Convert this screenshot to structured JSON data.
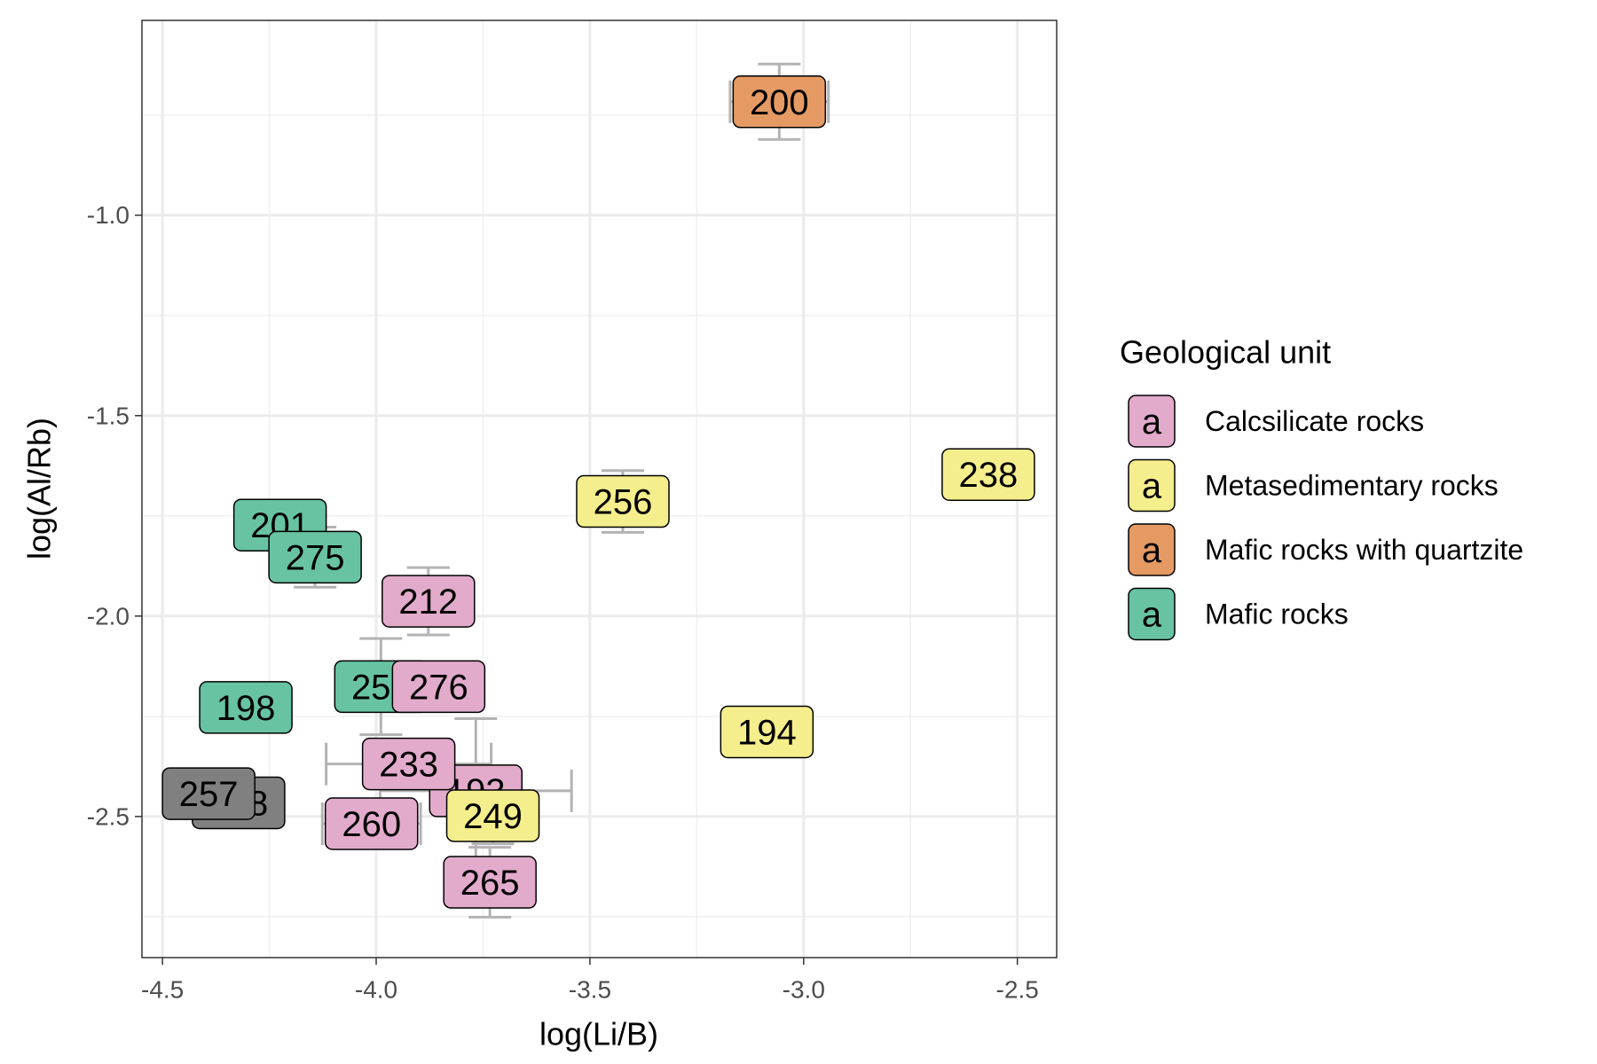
{
  "chart_data": {
    "type": "scatter",
    "x_label": "log(Li/B)",
    "y_label": "log(Al/Rb)",
    "legend_title": "Geological unit",
    "legend_key_text": "a",
    "legend_position": "right",
    "grid": true,
    "xlim": [
      -4.548,
      -2.408
    ],
    "ylim": [
      -2.852,
      -0.514
    ],
    "xticks": [
      {
        "value": -4.5,
        "label": "-4.5"
      },
      {
        "value": -4.0,
        "label": "-4.0"
      },
      {
        "value": -3.5,
        "label": "-3.5"
      },
      {
        "value": -3.0,
        "label": "-3.0"
      },
      {
        "value": -2.5,
        "label": "-2.5"
      }
    ],
    "yticks": [
      {
        "value": -1.0,
        "label": "-1.0"
      },
      {
        "value": -1.5,
        "label": "-1.5"
      },
      {
        "value": -2.0,
        "label": "-2.0"
      },
      {
        "value": -2.5,
        "label": "-2.5"
      }
    ],
    "errorbar_color": "#b3b3b3",
    "series": [
      {
        "name": "Calcsilicate rocks",
        "color": "#e2abcc",
        "points": [
          {
            "label": "212",
            "x": -3.878,
            "y": -1.963,
            "yerr": 0.084
          },
          {
            "label": "276",
            "x": -3.854,
            "y": -2.176,
            "yerr": 0.05
          },
          {
            "label": "193",
            "x": -3.767,
            "y": -2.436,
            "xerr": 0.224,
            "yerr": 0.18
          },
          {
            "label": "233",
            "x": -3.924,
            "y": -2.369,
            "xerr": 0.193
          },
          {
            "label": "260",
            "x": -4.011,
            "y": -2.518,
            "xerr": 0.115,
            "yerr": 0.04
          },
          {
            "label": "265",
            "x": -3.734,
            "y": -2.664,
            "yerr": 0.087
          }
        ]
      },
      {
        "name": "Metasedimentary rocks",
        "color": "#f5ee8c",
        "points": [
          {
            "label": "238",
            "x": -2.568,
            "y": -1.647
          },
          {
            "label": "256",
            "x": -3.423,
            "y": -1.714,
            "yerr": 0.077
          },
          {
            "label": "194",
            "x": -3.086,
            "y": -2.289
          },
          {
            "label": "249",
            "x": -3.727,
            "y": -2.498,
            "yerr": 0.07
          }
        ]
      },
      {
        "name": "Mafic rocks with quartzite",
        "color": "#e59a64",
        "points": [
          {
            "label": "200",
            "x": -3.057,
            "y": -0.717,
            "xerr": 0.115,
            "yerr": 0.094
          }
        ]
      },
      {
        "name": "Mafic rocks",
        "color": "#68c3a3",
        "points": [
          {
            "label": "201",
            "x": -4.225,
            "y": -1.773
          },
          {
            "label": "275",
            "x": -4.143,
            "y": -1.853,
            "yerr": 0.075
          },
          {
            "label": "198",
            "x": -4.305,
            "y": -2.228
          },
          {
            "label": "252",
            "x": -3.989,
            "y": -2.176,
            "yerr": 0.12
          }
        ]
      },
      {
        "color": "#808080",
        "points": [
          {
            "label": "258",
            "x": -4.322,
            "y": -2.466
          },
          {
            "label": "257",
            "x": -4.392,
            "y": -2.443
          }
        ]
      }
    ]
  }
}
